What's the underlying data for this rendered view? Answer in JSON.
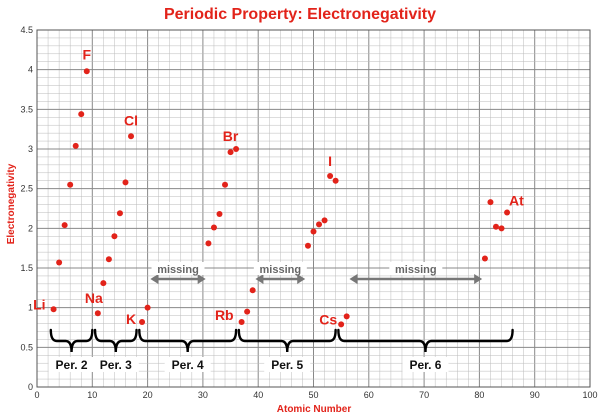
{
  "chart_data": {
    "type": "scatter",
    "title": "Periodic Property: Electronegativity",
    "xlabel": "Atomic Number",
    "ylabel": "Electronegativity",
    "xlim": [
      0,
      100
    ],
    "ylim": [
      0,
      4.5
    ],
    "x_ticks": [
      0,
      10,
      20,
      30,
      40,
      50,
      60,
      70,
      80,
      90,
      100
    ],
    "y_ticks": [
      0,
      0.5,
      1,
      1.5,
      2,
      2.5,
      3,
      3.5,
      4,
      4.5
    ],
    "x_tick_labels": [
      "0",
      "10",
      "20",
      "30",
      "40",
      "50",
      "60",
      "70",
      "80",
      "90",
      "100"
    ],
    "y_tick_labels": [
      "0",
      "0.5",
      "1",
      "1.5",
      "2",
      "2.5",
      "3",
      "3.5",
      "4",
      "4.5"
    ],
    "grid": true,
    "colors": {
      "title": "#e2231a",
      "points": "#e2231a",
      "labels": "#e2231a",
      "grid": "#bbbbbb",
      "arrow": "#777777"
    },
    "series": [
      {
        "points": [
          {
            "x": 3,
            "y": 0.98
          },
          {
            "x": 4,
            "y": 1.57
          },
          {
            "x": 5,
            "y": 2.04
          },
          {
            "x": 6,
            "y": 2.55
          },
          {
            "x": 7,
            "y": 3.04
          },
          {
            "x": 8,
            "y": 3.44
          },
          {
            "x": 9,
            "y": 3.98
          },
          {
            "x": 11,
            "y": 0.93
          },
          {
            "x": 12,
            "y": 1.31
          },
          {
            "x": 13,
            "y": 1.61
          },
          {
            "x": 14,
            "y": 1.9
          },
          {
            "x": 15,
            "y": 2.19
          },
          {
            "x": 16,
            "y": 2.58
          },
          {
            "x": 17,
            "y": 3.16
          },
          {
            "x": 19,
            "y": 0.82
          },
          {
            "x": 20,
            "y": 1.0
          },
          {
            "x": 31,
            "y": 1.81
          },
          {
            "x": 32,
            "y": 2.01
          },
          {
            "x": 33,
            "y": 2.18
          },
          {
            "x": 34,
            "y": 2.55
          },
          {
            "x": 35,
            "y": 2.96
          },
          {
            "x": 36,
            "y": 3.0
          },
          {
            "x": 37,
            "y": 0.82
          },
          {
            "x": 38,
            "y": 0.95
          },
          {
            "x": 39,
            "y": 1.22
          },
          {
            "x": 49,
            "y": 1.78
          },
          {
            "x": 50,
            "y": 1.96
          },
          {
            "x": 51,
            "y": 2.05
          },
          {
            "x": 52,
            "y": 2.1
          },
          {
            "x": 53,
            "y": 2.66
          },
          {
            "x": 54,
            "y": 2.6
          },
          {
            "x": 55,
            "y": 0.79
          },
          {
            "x": 56,
            "y": 0.89
          },
          {
            "x": 81,
            "y": 1.62
          },
          {
            "x": 82,
            "y": 2.33
          },
          {
            "x": 83,
            "y": 2.02
          },
          {
            "x": 84,
            "y": 2.0
          },
          {
            "x": 85,
            "y": 2.2
          }
        ]
      }
    ],
    "element_labels": [
      {
        "text": "Li",
        "x": 3,
        "y": 0.98
      },
      {
        "text": "F",
        "x": 9,
        "y": 3.98
      },
      {
        "text": "Na",
        "x": 11,
        "y": 0.93
      },
      {
        "text": "Cl",
        "x": 17,
        "y": 3.16
      },
      {
        "text": "K",
        "x": 19,
        "y": 0.82
      },
      {
        "text": "Br",
        "x": 35,
        "y": 2.96
      },
      {
        "text": "Rb",
        "x": 37,
        "y": 0.82
      },
      {
        "text": "I",
        "x": 53,
        "y": 2.66
      },
      {
        "text": "Cs",
        "x": 55,
        "y": 0.79
      },
      {
        "text": "At",
        "x": 85,
        "y": 2.2
      }
    ],
    "periods": [
      {
        "label": "Per. 2",
        "from": 2.5,
        "to": 10
      },
      {
        "label": "Per. 3",
        "from": 10.5,
        "to": 18
      },
      {
        "label": "Per. 4",
        "from": 18.5,
        "to": 36
      },
      {
        "label": "Per. 5",
        "from": 36.5,
        "to": 54
      },
      {
        "label": "Per. 6",
        "from": 54.5,
        "to": 86
      }
    ],
    "missing": [
      {
        "label": "missing",
        "from": 20.5,
        "to": 30.5
      },
      {
        "label": "missing",
        "from": 39.5,
        "to": 48.5
      },
      {
        "label": "missing",
        "from": 56.5,
        "to": 80.5
      }
    ]
  }
}
